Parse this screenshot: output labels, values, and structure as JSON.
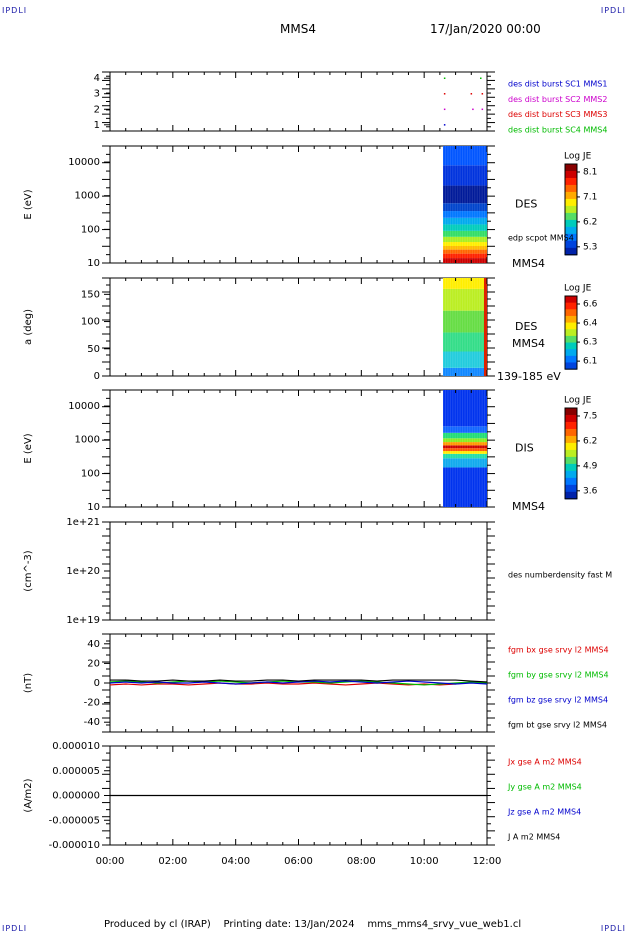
{
  "header": {
    "corner_tl": "IPDLI",
    "corner_tr": "IPDLI",
    "corner_bl": "IPDLI",
    "corner_br": "IPDLI",
    "spacecraft": "MMS4",
    "datetime": "17/Jan/2020 00:00"
  },
  "footer": {
    "produced_by": "Produced by cl (IRAP)",
    "printing_date": "Printing date: 13/Jan/2024",
    "filename": "mms_mms4_srvy_vue_web1.cl"
  },
  "colors": {
    "blue": "#0000cc",
    "magenta": "#cc00cc",
    "red": "#dd0000",
    "green": "#00bb00",
    "black": "#000000"
  },
  "chart_data": [
    {
      "type": "scatter",
      "id": "burst",
      "yticks": [
        "1",
        "2",
        "3",
        "4"
      ],
      "ylim": [
        0.6,
        4.4
      ],
      "legend": [
        {
          "name": "des dist burst SC1 MMS1",
          "color": "#0000cc"
        },
        {
          "name": "des dist burst SC2 MMS2",
          "color": "#cc00cc"
        },
        {
          "name": "des dist burst SC3 MMS3",
          "color": "#dd0000"
        },
        {
          "name": "des dist burst SC4 MMS4",
          "color": "#00bb00"
        }
      ],
      "points": [
        {
          "x": 10.65,
          "y": 4,
          "c": "#00bb00"
        },
        {
          "x": 11.8,
          "y": 4,
          "c": "#00bb00"
        },
        {
          "x": 10.65,
          "y": 3,
          "c": "#dd0000"
        },
        {
          "x": 11.5,
          "y": 3,
          "c": "#dd0000"
        },
        {
          "x": 11.85,
          "y": 3,
          "c": "#dd0000"
        },
        {
          "x": 10.65,
          "y": 2,
          "c": "#cc00cc"
        },
        {
          "x": 11.55,
          "y": 2,
          "c": "#cc00cc"
        },
        {
          "x": 11.85,
          "y": 2,
          "c": "#cc00cc"
        },
        {
          "x": 10.65,
          "y": 1,
          "c": "#0000cc"
        }
      ]
    },
    {
      "type": "heatmap",
      "id": "des_energy",
      "ylabel": "E (eV)",
      "yscale": "log",
      "ylim": [
        10,
        30000
      ],
      "yticks": [
        "10",
        "100",
        "1000",
        "10000"
      ],
      "label": "DES",
      "label2": "edp scpot MMS4",
      "label3": "MMS4",
      "colorbar": {
        "title": "Log JE",
        "ticks": [
          "8.1",
          "7.1",
          "6.2",
          "5.3"
        ]
      },
      "data_interval": [
        10.6,
        12.0
      ],
      "bands": [
        {
          "from": 10,
          "to": 14,
          "color": "#cc0000"
        },
        {
          "from": 14,
          "to": 19,
          "color": "#ff2200"
        },
        {
          "from": 19,
          "to": 25,
          "color": "#ff6600"
        },
        {
          "from": 25,
          "to": 32,
          "color": "#ffbb00"
        },
        {
          "from": 32,
          "to": 42,
          "color": "#ffee00"
        },
        {
          "from": 42,
          "to": 60,
          "color": "#aaee22"
        },
        {
          "from": 60,
          "to": 90,
          "color": "#33dd66"
        },
        {
          "from": 90,
          "to": 140,
          "color": "#00ccbb"
        },
        {
          "from": 140,
          "to": 220,
          "color": "#00aaee"
        },
        {
          "from": 220,
          "to": 350,
          "color": "#0077ff"
        },
        {
          "from": 350,
          "to": 600,
          "color": "#0044cc"
        },
        {
          "from": 600,
          "to": 2000,
          "color": "#001a99"
        },
        {
          "from": 2000,
          "to": 8000,
          "color": "#0033dd"
        },
        {
          "from": 8000,
          "to": 30000,
          "color": "#0055ff"
        }
      ]
    },
    {
      "type": "heatmap",
      "id": "des_pitch",
      "ylabel": "a (deg)",
      "ylim": [
        0,
        180
      ],
      "yticks": [
        "0",
        "50",
        "100",
        "150"
      ],
      "label": "DES",
      "label2": "MMS4",
      "label3": "139-185 eV",
      "colorbar": {
        "title": "Log JE",
        "ticks": [
          "6.6",
          "6.4",
          "6.3",
          "6.1"
        ]
      },
      "data_interval": [
        10.6,
        12.0
      ],
      "bands": [
        {
          "from": 0,
          "to": 15,
          "color": "#1188ff"
        },
        {
          "from": 15,
          "to": 45,
          "color": "#22ccdd"
        },
        {
          "from": 45,
          "to": 80,
          "color": "#33dd88"
        },
        {
          "from": 80,
          "to": 120,
          "color": "#66dd44"
        },
        {
          "from": 120,
          "to": 160,
          "color": "#bbee22"
        },
        {
          "from": 160,
          "to": 180,
          "color": "#ffee00"
        }
      ]
    },
    {
      "type": "heatmap",
      "id": "dis_energy",
      "ylabel": "E (eV)",
      "yscale": "log",
      "ylim": [
        10,
        30000
      ],
      "yticks": [
        "10",
        "100",
        "1000",
        "10000"
      ],
      "label": "DIS",
      "label2": "MMS4",
      "colorbar": {
        "title": "Log JE",
        "ticks": [
          "7.5",
          "6.2",
          "4.9",
          "3.6"
        ]
      },
      "data_interval": [
        10.6,
        12.0
      ],
      "bands": [
        {
          "from": 10,
          "to": 150,
          "color": "#0033ee"
        },
        {
          "from": 150,
          "to": 280,
          "color": "#11aaee"
        },
        {
          "from": 280,
          "to": 380,
          "color": "#22ddaa"
        },
        {
          "from": 380,
          "to": 460,
          "color": "#ffee00"
        },
        {
          "from": 460,
          "to": 560,
          "color": "#ff5500"
        },
        {
          "from": 560,
          "to": 680,
          "color": "#cc0000"
        },
        {
          "from": 680,
          "to": 850,
          "color": "#ff9900"
        },
        {
          "from": 850,
          "to": 1100,
          "color": "#88ee22"
        },
        {
          "from": 1100,
          "to": 1600,
          "color": "#22dd77"
        },
        {
          "from": 1600,
          "to": 2500,
          "color": "#1166ff"
        },
        {
          "from": 2500,
          "to": 30000,
          "color": "#0033ee"
        }
      ]
    },
    {
      "type": "line",
      "id": "density",
      "ylabel": "(cm^-3)",
      "yscale": "log",
      "ylim": [
        1e+19,
        1e+21
      ],
      "yticks": [
        "1e+19",
        "1e+20",
        "1e+21"
      ],
      "legend": [
        {
          "name": "des numberdensity fast M",
          "color": "#000000"
        }
      ],
      "series": []
    },
    {
      "type": "line",
      "id": "fgm",
      "ylabel": "(nT)",
      "ylim": [
        -50,
        50
      ],
      "yticks": [
        "-40",
        "-20",
        "0",
        "20",
        "40"
      ],
      "legend": [
        {
          "name": "fgm bx gse srvy l2 MMS4",
          "color": "#dd0000"
        },
        {
          "name": "fgm by gse srvy l2 MMS4",
          "color": "#00bb00"
        },
        {
          "name": "fgm bz gse srvy l2 MMS4",
          "color": "#0000cc"
        },
        {
          "name": "fgm bt gse srvy l2 MMS4",
          "color": "#000000"
        }
      ],
      "x": [
        0,
        0.5,
        1,
        1.5,
        2,
        2.5,
        3,
        3.5,
        4,
        4.5,
        5,
        5.5,
        6,
        6.5,
        7,
        7.5,
        8,
        8.5,
        9,
        9.5,
        10,
        10.5,
        11,
        11.5,
        12
      ],
      "series": [
        {
          "name": "fgm bx gse srvy l2 MMS4",
          "color": "#dd0000",
          "values": [
            -2,
            -1,
            -2,
            -1,
            -1,
            -2,
            -1,
            0,
            -1,
            -1,
            0,
            -1,
            -1,
            0,
            -1,
            -2,
            -1,
            0,
            -1,
            -2,
            -1,
            -2,
            -1,
            1,
            0
          ]
        },
        {
          "name": "fgm by gse srvy l2 MMS4",
          "color": "#00bb00",
          "values": [
            1,
            2,
            1,
            0,
            1,
            2,
            1,
            2,
            1,
            0,
            1,
            2,
            1,
            1,
            0,
            1,
            2,
            1,
            0,
            -1,
            -2,
            -1,
            0,
            1,
            0
          ]
        },
        {
          "name": "fgm bz gse srvy l2 MMS4",
          "color": "#0000cc",
          "values": [
            0,
            1,
            0,
            1,
            0,
            0,
            1,
            0,
            -1,
            0,
            1,
            0,
            1,
            2,
            1,
            2,
            1,
            0,
            1,
            2,
            1,
            0,
            -1,
            0,
            -1
          ]
        },
        {
          "name": "fgm bt gse srvy l2 MMS4",
          "color": "#000000",
          "values": [
            3,
            3,
            2,
            2,
            3,
            2,
            2,
            3,
            2,
            2,
            3,
            3,
            2,
            3,
            3,
            3,
            3,
            2,
            3,
            3,
            3,
            3,
            3,
            2,
            1
          ]
        }
      ]
    },
    {
      "type": "line",
      "id": "current",
      "ylabel": "(A/m2)",
      "ylim": [
        -1e-05,
        1e-05
      ],
      "yticks": [
        "-0.000010",
        "-0.000005",
        "0.000000",
        "0.000005",
        "0.000010"
      ],
      "legend": [
        {
          "name": "Jx gse A m2 MMS4",
          "color": "#dd0000"
        },
        {
          "name": "Jy gse A m2 MMS4",
          "color": "#00bb00"
        },
        {
          "name": "Jz gse A m2 MMS4",
          "color": "#0000cc"
        },
        {
          "name": "J A m2 MMS4",
          "color": "#000000"
        }
      ],
      "x": [
        0,
        12
      ],
      "series": [
        {
          "name": "J A m2 MMS4",
          "color": "#000000",
          "values": [
            0,
            0
          ]
        }
      ]
    }
  ],
  "xaxis": {
    "ticks": [
      "00:00",
      "02:00",
      "04:00",
      "06:00",
      "08:00",
      "10:00",
      "12:00"
    ],
    "xlim": [
      0,
      12
    ]
  }
}
